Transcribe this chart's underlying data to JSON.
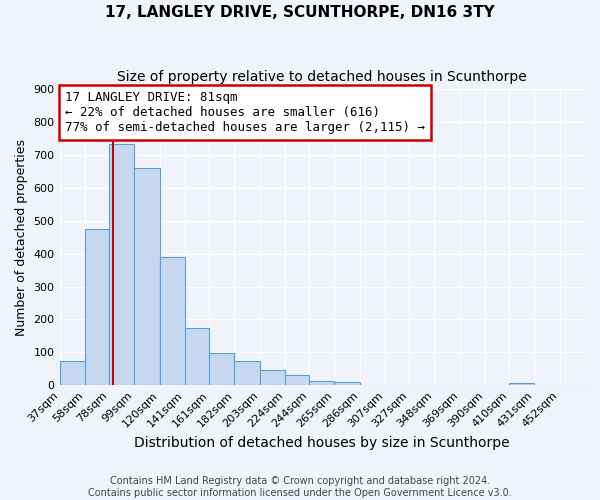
{
  "title": "17, LANGLEY DRIVE, SCUNTHORPE, DN16 3TY",
  "subtitle": "Size of property relative to detached houses in Scunthorpe",
  "xlabel": "Distribution of detached houses by size in Scunthorpe",
  "ylabel": "Number of detached properties",
  "bar_values": [
    75,
    475,
    735,
    660,
    390,
    175,
    97,
    75,
    47,
    32,
    12,
    10,
    0,
    0,
    0,
    0,
    0,
    0,
    7,
    0,
    0
  ],
  "bin_labels": [
    "37sqm",
    "58sqm",
    "78sqm",
    "99sqm",
    "120sqm",
    "141sqm",
    "161sqm",
    "182sqm",
    "203sqm",
    "224sqm",
    "244sqm",
    "265sqm",
    "286sqm",
    "307sqm",
    "327sqm",
    "348sqm",
    "369sqm",
    "390sqm",
    "410sqm",
    "431sqm",
    "452sqm"
  ],
  "bin_edges": [
    37,
    58,
    78,
    99,
    120,
    141,
    161,
    182,
    203,
    224,
    244,
    265,
    286,
    307,
    327,
    348,
    369,
    390,
    410,
    431,
    452
  ],
  "bar_color": "#c5d8f0",
  "bar_edge_color": "#5a9fd4",
  "vline_x": 81,
  "vline_color": "#cc0000",
  "annotation_line1": "17 LANGLEY DRIVE: 81sqm",
  "annotation_line2": "← 22% of detached houses are smaller (616)",
  "annotation_line3": "77% of semi-detached houses are larger (2,115) →",
  "annotation_box_color": "#cc0000",
  "ylim": [
    0,
    900
  ],
  "yticks": [
    0,
    100,
    200,
    300,
    400,
    500,
    600,
    700,
    800,
    900
  ],
  "background_color": "#f0f4fa",
  "footer_text": "Contains HM Land Registry data © Crown copyright and database right 2024.\nContains public sector information licensed under the Open Government Licence v3.0.",
  "title_fontsize": 11,
  "subtitle_fontsize": 10,
  "xlabel_fontsize": 10,
  "ylabel_fontsize": 9,
  "tick_fontsize": 8,
  "annotation_fontsize": 9,
  "footer_fontsize": 7
}
